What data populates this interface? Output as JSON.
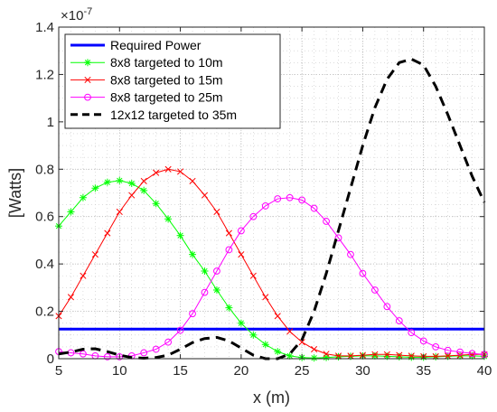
{
  "chart_data": {
    "type": "line",
    "xlabel": "x (m)",
    "ylabel": "[Watts]",
    "scale_exponent_label": "×10",
    "scale_exponent_power": "-7",
    "xlim": [
      5,
      40
    ],
    "ylim": [
      0,
      1.4
    ],
    "x_ticks": [
      "5",
      "10",
      "15",
      "20",
      "25",
      "30",
      "35",
      "40"
    ],
    "y_ticks": [
      "0",
      "0.2",
      "0.4",
      "0.6",
      "0.8",
      "1",
      "1.2",
      "1.4"
    ],
    "grid": true,
    "legend_position": "top-left",
    "series": [
      {
        "name": "Required Power",
        "color": "#0000ff",
        "line": "solid",
        "marker": "none",
        "x": [
          5,
          40
        ],
        "y": [
          0.125,
          0.125
        ]
      },
      {
        "name": "8x8 targeted to 10m",
        "color": "#00ff00",
        "line": "solid",
        "marker": "asterisk",
        "x": [
          5,
          6,
          7,
          8,
          9,
          10,
          11,
          12,
          13,
          14,
          15,
          16,
          17,
          18,
          19,
          20,
          21,
          22,
          23,
          24,
          25,
          26,
          27,
          28,
          29,
          30,
          31,
          32,
          33,
          34,
          35,
          36,
          37,
          38,
          39,
          40
        ],
        "y": [
          0.56,
          0.62,
          0.68,
          0.72,
          0.745,
          0.752,
          0.74,
          0.71,
          0.655,
          0.59,
          0.52,
          0.44,
          0.37,
          0.29,
          0.215,
          0.15,
          0.1,
          0.06,
          0.03,
          0.012,
          0.005,
          0.003,
          0.005,
          0.008,
          0.01,
          0.012,
          0.012,
          0.01,
          0.008,
          0.006,
          0.006,
          0.008,
          0.01,
          0.012,
          0.012,
          0.01
        ]
      },
      {
        "name": "8x8 targeted to 15m",
        "color": "#ff0000",
        "line": "solid",
        "marker": "x",
        "x": [
          5,
          6,
          7,
          8,
          9,
          10,
          11,
          12,
          13,
          14,
          15,
          16,
          17,
          18,
          19,
          20,
          21,
          22,
          23,
          24,
          25,
          26,
          27,
          28,
          29,
          30,
          31,
          32,
          33,
          34,
          35,
          36,
          37,
          38,
          39,
          40
        ],
        "y": [
          0.18,
          0.26,
          0.35,
          0.44,
          0.53,
          0.62,
          0.69,
          0.75,
          0.785,
          0.8,
          0.79,
          0.75,
          0.69,
          0.62,
          0.53,
          0.44,
          0.35,
          0.26,
          0.18,
          0.115,
          0.07,
          0.04,
          0.02,
          0.012,
          0.012,
          0.015,
          0.018,
          0.018,
          0.015,
          0.012,
          0.01,
          0.01,
          0.012,
          0.015,
          0.018,
          0.018
        ]
      },
      {
        "name": "8x8 targeted to 25m",
        "color": "#ff00ff",
        "line": "solid",
        "marker": "circle",
        "x": [
          5,
          6,
          7,
          8,
          9,
          10,
          11,
          12,
          13,
          14,
          15,
          16,
          17,
          18,
          19,
          20,
          21,
          22,
          23,
          24,
          25,
          26,
          27,
          28,
          29,
          30,
          31,
          32,
          33,
          34,
          35,
          36,
          37,
          38,
          39,
          40
        ],
        "y": [
          0.03,
          0.025,
          0.02,
          0.012,
          0.008,
          0.008,
          0.012,
          0.025,
          0.04,
          0.07,
          0.12,
          0.19,
          0.28,
          0.37,
          0.46,
          0.54,
          0.6,
          0.645,
          0.675,
          0.68,
          0.67,
          0.635,
          0.58,
          0.51,
          0.44,
          0.36,
          0.29,
          0.22,
          0.16,
          0.11,
          0.075,
          0.05,
          0.035,
          0.028,
          0.022,
          0.018
        ]
      },
      {
        "name": "12x12 targeted to 35m",
        "color": "#000000",
        "line": "dashed",
        "marker": "none",
        "x": [
          5,
          6,
          7,
          8,
          9,
          10,
          11,
          12,
          13,
          14,
          15,
          16,
          17,
          18,
          19,
          20,
          21,
          22,
          23,
          24,
          25,
          26,
          27,
          28,
          29,
          30,
          31,
          32,
          33,
          34,
          35,
          36,
          37,
          38,
          39,
          40
        ],
        "y": [
          0.02,
          0.028,
          0.04,
          0.042,
          0.03,
          0.015,
          0.005,
          0.002,
          0.005,
          0.015,
          0.04,
          0.068,
          0.085,
          0.09,
          0.075,
          0.045,
          0.015,
          0.0,
          0.0,
          0.02,
          0.08,
          0.2,
          0.36,
          0.54,
          0.72,
          0.9,
          1.06,
          1.18,
          1.25,
          1.265,
          1.24,
          1.15,
          1.03,
          0.9,
          0.77,
          0.66
        ]
      }
    ]
  }
}
